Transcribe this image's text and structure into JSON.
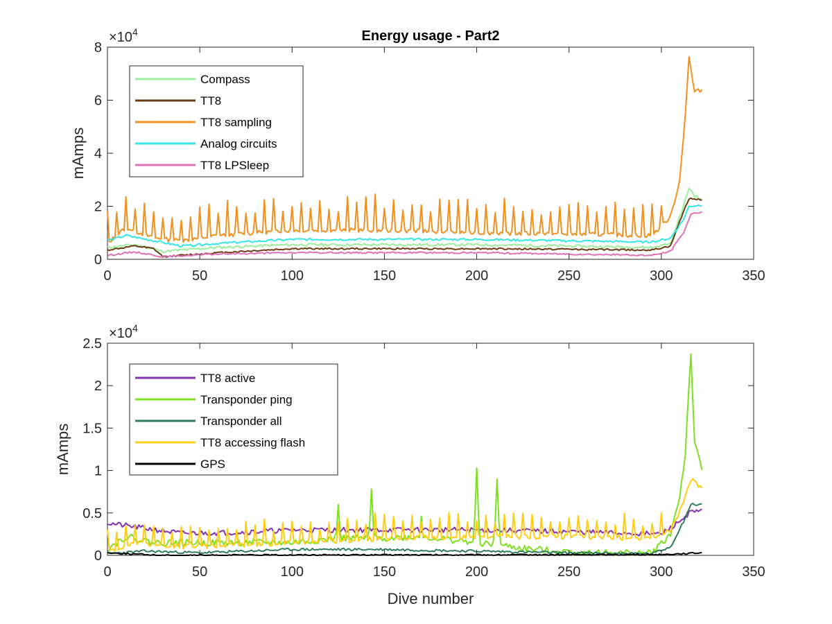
{
  "chart_data": [
    {
      "type": "line",
      "title": "Energy usage - Part2",
      "xlabel": "",
      "ylabel": "mAmps",
      "xlim": [
        0,
        350
      ],
      "ylim": [
        0,
        80000
      ],
      "y_exponent_label": {
        "base": "×10",
        "exp": "4"
      },
      "xticks": [
        0,
        50,
        100,
        150,
        200,
        250,
        300,
        350
      ],
      "yticks": [
        0,
        20000,
        40000,
        60000,
        80000
      ],
      "ytick_labels": [
        "0",
        "2",
        "4",
        "6",
        "8"
      ],
      "legend_position": "top-left",
      "series": [
        {
          "name": "Compass",
          "color": "#99ee99",
          "anchors": [
            [
              0,
              4500
            ],
            [
              15,
              5500
            ],
            [
              30,
              3000
            ],
            [
              60,
              4500
            ],
            [
              100,
              5500
            ],
            [
              200,
              5500
            ],
            [
              250,
              5000
            ],
            [
              295,
              4500
            ],
            [
              305,
              6000
            ],
            [
              312,
              20000
            ],
            [
              315,
              27000
            ],
            [
              318,
              24000
            ],
            [
              322,
              22500
            ]
          ],
          "noise": 500,
          "seed": 11
        },
        {
          "name": "TT8",
          "color": "#6b3a12",
          "anchors": [
            [
              0,
              3500
            ],
            [
              15,
              5000
            ],
            [
              25,
              4000
            ],
            [
              30,
              1000
            ],
            [
              40,
              1500
            ],
            [
              60,
              2500
            ],
            [
              100,
              4000
            ],
            [
              200,
              4000
            ],
            [
              250,
              3800
            ],
            [
              295,
              3500
            ],
            [
              305,
              5000
            ],
            [
              312,
              18000
            ],
            [
              315,
              23000
            ],
            [
              322,
              22500
            ]
          ],
          "noise": 300,
          "seed": 12
        },
        {
          "name": "TT8 sampling",
          "color": "#f0901e",
          "anchors": [
            [
              0,
              6000
            ],
            [
              10,
              12000
            ],
            [
              25,
              8000
            ],
            [
              40,
              7000
            ],
            [
              60,
              9000
            ],
            [
              100,
              11000
            ],
            [
              150,
              11000
            ],
            [
              200,
              10000
            ],
            [
              250,
              9500
            ],
            [
              295,
              9000
            ],
            [
              305,
              16000
            ],
            [
              310,
              30000
            ],
            [
              313,
              55000
            ],
            [
              315,
              76000
            ],
            [
              318,
              63000
            ],
            [
              322,
              64000
            ]
          ],
          "noise": 800,
          "spike_period": 5,
          "spike_height": 10000,
          "seed": 13
        },
        {
          "name": "Analog circuits",
          "color": "#33e6e6",
          "anchors": [
            [
              0,
              7000
            ],
            [
              10,
              9000
            ],
            [
              40,
              5000
            ],
            [
              60,
              6000
            ],
            [
              100,
              7500
            ],
            [
              200,
              7500
            ],
            [
              250,
              7000
            ],
            [
              295,
              6500
            ],
            [
              305,
              8000
            ],
            [
              312,
              15000
            ],
            [
              315,
              20000
            ],
            [
              322,
              20500
            ]
          ],
          "noise": 400,
          "seed": 14
        },
        {
          "name": "TT8 LPSleep",
          "color": "#e070b8",
          "anchors": [
            [
              0,
              1500
            ],
            [
              15,
              2800
            ],
            [
              30,
              1000
            ],
            [
              60,
              2000
            ],
            [
              100,
              2500
            ],
            [
              200,
              2500
            ],
            [
              250,
              2000
            ],
            [
              295,
              1500
            ],
            [
              305,
              3000
            ],
            [
              312,
              10000
            ],
            [
              316,
              17000
            ],
            [
              322,
              18000
            ]
          ],
          "noise": 300,
          "seed": 15
        }
      ]
    },
    {
      "type": "line",
      "title": "",
      "xlabel": "Dive number",
      "ylabel": "mAmps",
      "xlim": [
        0,
        350
      ],
      "ylim": [
        0,
        25000
      ],
      "y_exponent_label": {
        "base": "×10",
        "exp": "4"
      },
      "xticks": [
        0,
        50,
        100,
        150,
        200,
        250,
        300,
        350
      ],
      "yticks": [
        0,
        5000,
        10000,
        15000,
        20000,
        25000
      ],
      "ytick_labels": [
        "0",
        "0.5",
        "1",
        "1.5",
        "2",
        "2.5"
      ],
      "legend_position": "top-left",
      "series": [
        {
          "name": "TT8 active",
          "color": "#8030b0",
          "anchors": [
            [
              0,
              3800
            ],
            [
              20,
              3200
            ],
            [
              40,
              2600
            ],
            [
              70,
              2700
            ],
            [
              100,
              3000
            ],
            [
              200,
              3000
            ],
            [
              250,
              2800
            ],
            [
              300,
              2500
            ],
            [
              310,
              4000
            ],
            [
              315,
              5000
            ],
            [
              322,
              5200
            ]
          ],
          "noise": 300,
          "seed": 21
        },
        {
          "name": "Transponder ping",
          "color": "#7ce020",
          "anchors": [
            [
              0,
              800
            ],
            [
              10,
              2200
            ],
            [
              25,
              1500
            ],
            [
              50,
              1500
            ],
            [
              100,
              1500
            ],
            [
              125,
              2000
            ],
            [
              145,
              2000
            ],
            [
              170,
              2200
            ],
            [
              200,
              1500
            ],
            [
              230,
              700
            ],
            [
              260,
              300
            ],
            [
              295,
              300
            ],
            [
              305,
              2500
            ],
            [
              310,
              7000
            ],
            [
              313,
              12000
            ],
            [
              316,
              24000
            ],
            [
              318,
              13000
            ],
            [
              322,
              10200
            ]
          ],
          "noise": 400,
          "peaks": [
            [
              125,
              6000
            ],
            [
              143,
              7800
            ],
            [
              170,
              4600
            ],
            [
              200,
              10300
            ],
            [
              211,
              9000
            ]
          ],
          "seed": 22
        },
        {
          "name": "Transponder all",
          "color": "#2e7d58",
          "anchors": [
            [
              0,
              200
            ],
            [
              20,
              500
            ],
            [
              50,
              300
            ],
            [
              100,
              700
            ],
            [
              150,
              700
            ],
            [
              200,
              500
            ],
            [
              250,
              300
            ],
            [
              295,
              200
            ],
            [
              305,
              1000
            ],
            [
              312,
              4000
            ],
            [
              316,
              6000
            ],
            [
              322,
              6000
            ]
          ],
          "noise": 150,
          "seed": 23
        },
        {
          "name": "TT8 accessing flash",
          "color": "#ffcc11",
          "anchors": [
            [
              0,
              500
            ],
            [
              15,
              1500
            ],
            [
              40,
              1000
            ],
            [
              70,
              1200
            ],
            [
              100,
              1500
            ],
            [
              150,
              2000
            ],
            [
              200,
              2200
            ],
            [
              250,
              2200
            ],
            [
              295,
              2000
            ],
            [
              305,
              3000
            ],
            [
              312,
              6000
            ],
            [
              316,
              9000
            ],
            [
              322,
              8000
            ]
          ],
          "noise": 300,
          "spike_period": 5,
          "spike_height": 2200,
          "seed": 24
        },
        {
          "name": "GPS",
          "color": "#000000",
          "anchors": [
            [
              0,
              300
            ],
            [
              30,
              0
            ],
            [
              100,
              50
            ],
            [
              200,
              50
            ],
            [
              300,
              100
            ],
            [
              322,
              300
            ]
          ],
          "noise": 80,
          "seed": 25
        }
      ]
    }
  ]
}
